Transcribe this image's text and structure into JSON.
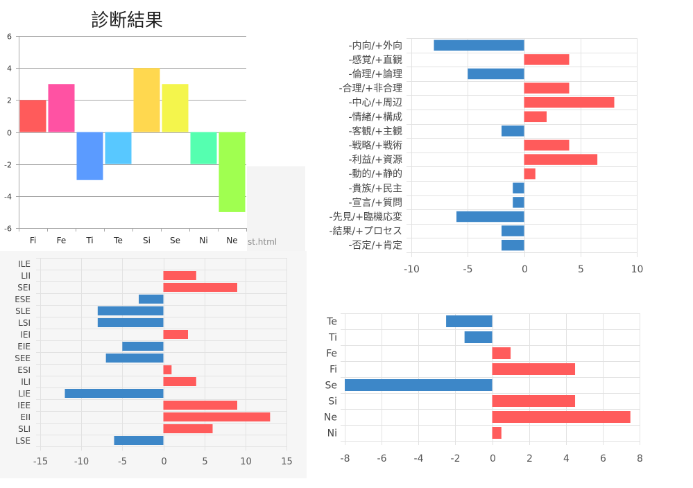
{
  "page_fragment": "st.html",
  "chart_data": [
    {
      "type": "bar",
      "orientation": "vertical",
      "title": "診断結果",
      "xlabel": "",
      "ylabel": "",
      "categories": [
        "Fi",
        "Fe",
        "Ti",
        "Te",
        "Si",
        "Se",
        "Ni",
        "Ne"
      ],
      "values": [
        2,
        3,
        -3,
        -2,
        4,
        3,
        -2,
        -5
      ],
      "colors": [
        "#ff5b5b",
        "#ff52a3",
        "#5b9bff",
        "#58c8ff",
        "#ffd84f",
        "#f4f54c",
        "#55ffb0",
        "#a0ff50"
      ],
      "ylim": [
        -6,
        6
      ],
      "yticks": [
        6,
        4,
        2,
        0,
        -2,
        -4,
        -6
      ],
      "grid": true,
      "legend": "none"
    },
    {
      "type": "bar",
      "orientation": "horizontal",
      "title": "",
      "xlabel": "",
      "ylabel": "",
      "categories": [
        "-内向/+外向",
        "-感覚/+直観",
        "-倫理/+論理",
        "-合理/+非合理",
        "-中心/+周辺",
        "-情緒/+構成",
        "-客観/+主観",
        "-戦略/+戦術",
        "-利益/+資源",
        "-動的/+静的",
        "-貴族/+民主",
        "-宣言/+質問",
        "-先見/+臨機応変",
        "-結果/+プロセス",
        "-否定/+肯定"
      ],
      "values": [
        -8,
        4,
        -5,
        4,
        8,
        2,
        -2,
        4,
        6.5,
        1,
        -1,
        -1,
        -6,
        -2,
        -2
      ],
      "positive_color": "#ff5b5b",
      "negative_color": "#3d87c8",
      "xlim": [
        -10,
        10
      ],
      "xticks": [
        -10,
        -5,
        0,
        5,
        10
      ],
      "grid": true,
      "legend": "none"
    },
    {
      "type": "bar",
      "orientation": "horizontal",
      "title": "",
      "xlabel": "",
      "ylabel": "",
      "categories": [
        "ILE",
        "LII",
        "SEI",
        "ESE",
        "SLE",
        "LSI",
        "IEI",
        "EIE",
        "SEE",
        "ESI",
        "ILI",
        "LIE",
        "IEE",
        "EII",
        "SLI",
        "LSE"
      ],
      "values": [
        0,
        4,
        9,
        -3,
        -8,
        -8,
        3,
        -5,
        -7,
        1,
        4,
        -12,
        9,
        13,
        6,
        -6
      ],
      "positive_color": "#ff5b5b",
      "negative_color": "#3d87c8",
      "xlim": [
        -15,
        15
      ],
      "xticks": [
        -15,
        -10,
        -5,
        0,
        5,
        10,
        15
      ],
      "grid": true,
      "legend": "none"
    },
    {
      "type": "bar",
      "orientation": "horizontal",
      "title": "",
      "xlabel": "",
      "ylabel": "",
      "categories": [
        "Te",
        "Ti",
        "Fe",
        "Fi",
        "Se",
        "Si",
        "Ne",
        "Ni"
      ],
      "values": [
        -2.5,
        -1.5,
        1,
        4.5,
        -8,
        4.5,
        7.5,
        0.5
      ],
      "positive_color": "#ff5b5b",
      "negative_color": "#3d87c8",
      "xlim": [
        -8,
        8
      ],
      "xticks": [
        -8,
        -6,
        -4,
        -2,
        0,
        2,
        4,
        6,
        8
      ],
      "grid": true,
      "legend": "none"
    }
  ]
}
